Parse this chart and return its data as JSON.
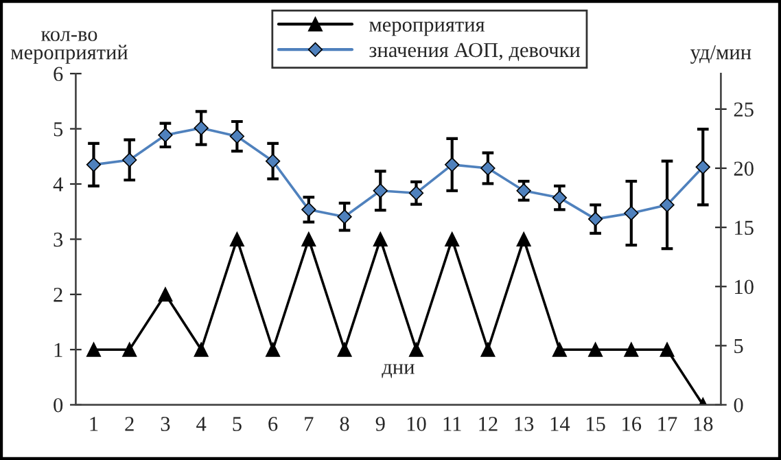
{
  "chart_data": {
    "type": "line",
    "ylabel": "кол-во\nмероприятий",
    "y2label": "уд/мин",
    "xlabel": "дни",
    "categories": [
      "1",
      "2",
      "3",
      "4",
      "5",
      "6",
      "7",
      "8",
      "9",
      "10",
      "11",
      "12",
      "13",
      "14",
      "15",
      "16",
      "17",
      "18"
    ],
    "series": [
      {
        "name": "мероприятия",
        "color": "#000000",
        "marker": "triangle",
        "values": [
          1,
          1,
          2,
          1,
          3,
          1,
          3,
          1,
          3,
          1,
          3,
          1,
          3,
          1,
          1,
          1,
          1,
          0
        ]
      },
      {
        "name": "значения АОП, девочки",
        "color": "#4f81bd",
        "marker": "diamond",
        "axis": "y2",
        "values": [
          20.3,
          20.7,
          22.8,
          23.4,
          22.7,
          20.6,
          16.5,
          15.9,
          18.1,
          17.9,
          20.3,
          20.0,
          18.1,
          17.5,
          15.7,
          16.2,
          16.9,
          20.1
        ],
        "errors": [
          1.8,
          1.7,
          1.0,
          1.4,
          1.25,
          1.5,
          1.05,
          1.15,
          1.65,
          0.95,
          2.2,
          1.3,
          0.8,
          1.0,
          1.2,
          2.7,
          3.7,
          3.2
        ]
      }
    ],
    "ylim": [
      0,
      6
    ],
    "yticks": [
      0,
      1,
      2,
      3,
      4,
      5,
      6
    ],
    "y2lim": [
      0,
      28
    ],
    "y2ticks": [
      0,
      5,
      10,
      15,
      20,
      25
    ],
    "grid": false,
    "legend": "top"
  }
}
